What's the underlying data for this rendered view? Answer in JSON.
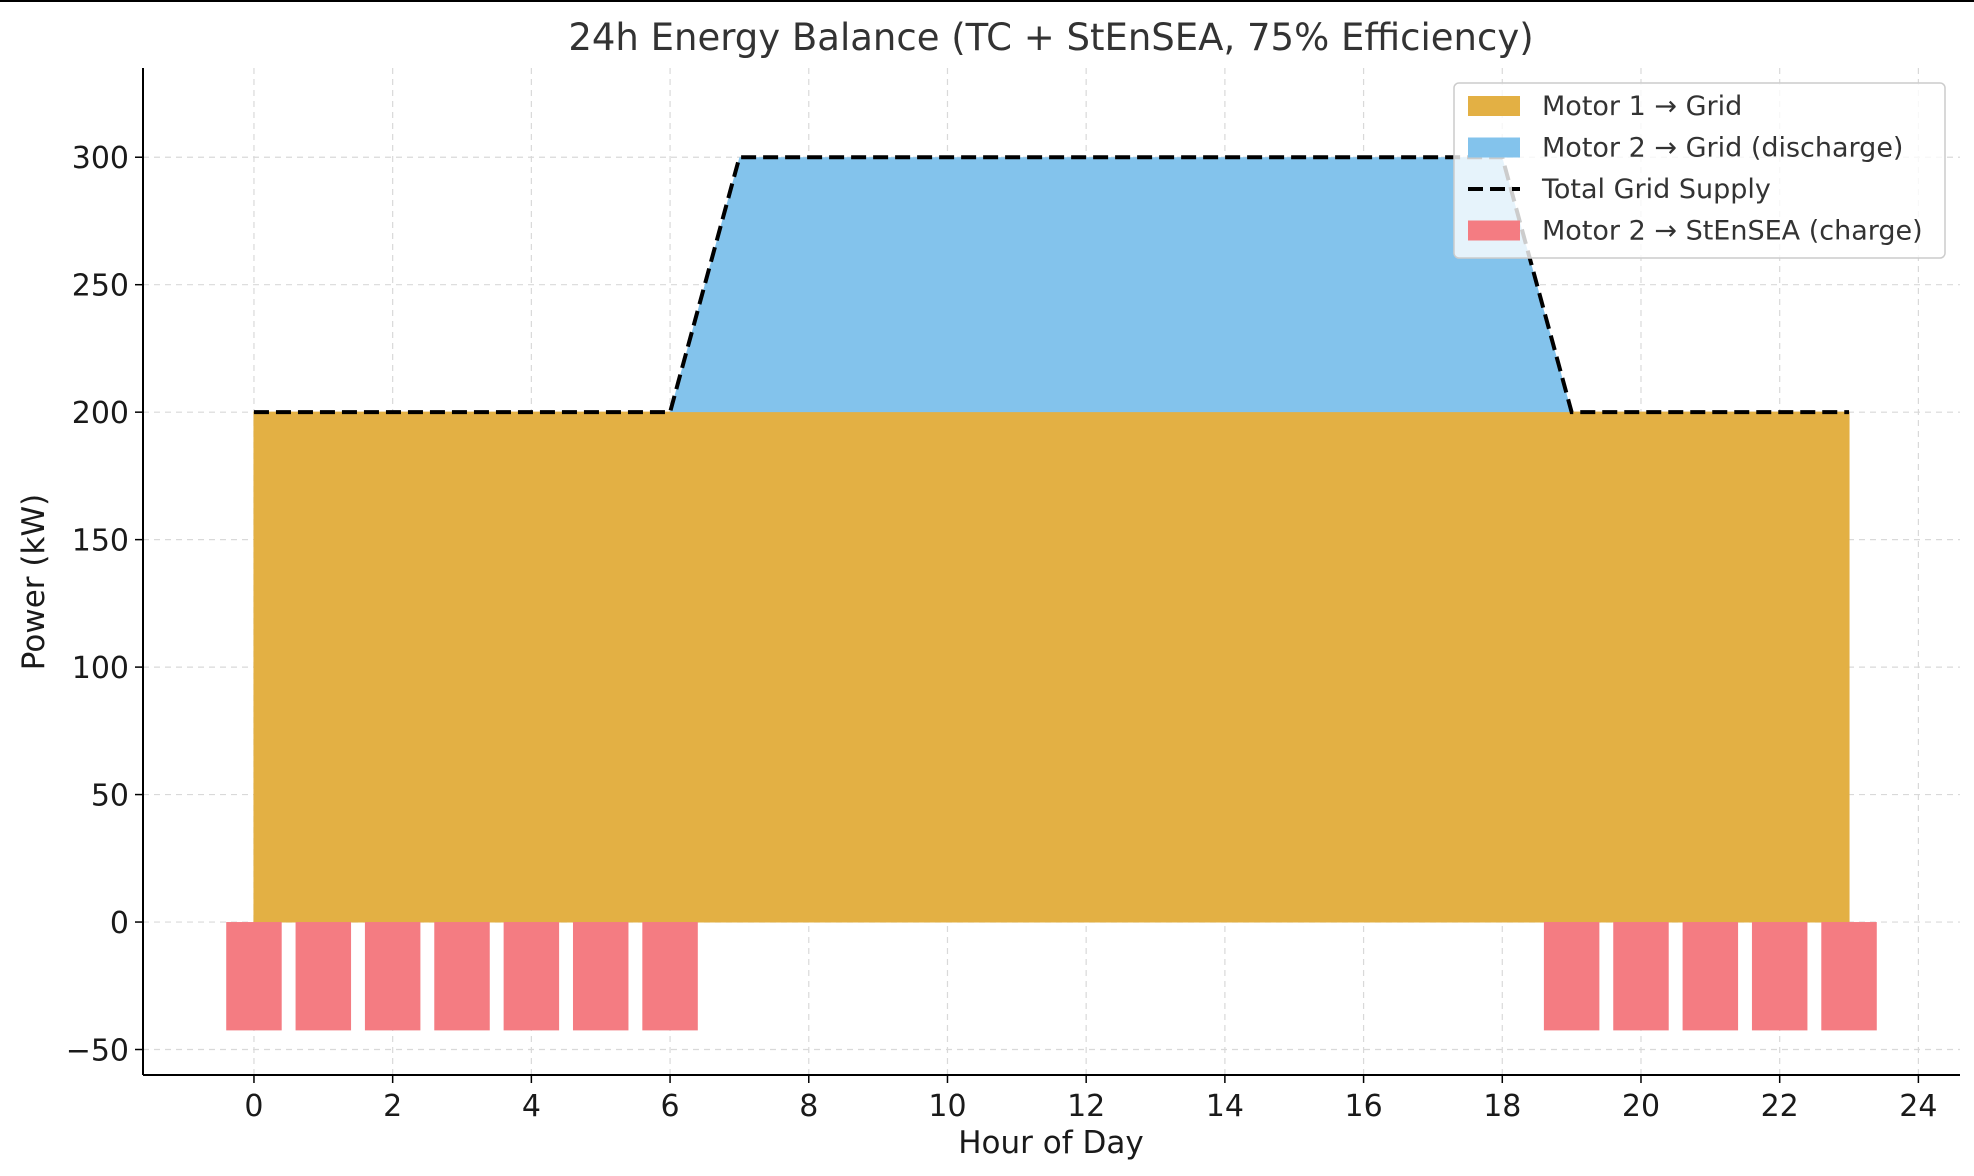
{
  "chart_data": {
    "type": "area",
    "title": "24h Energy Balance (TC + StEnSEA, 75% Efficiency)",
    "xlabel": "Hour of Day",
    "ylabel": "Power (kW)",
    "xlim": [
      -1.6,
      24.6
    ],
    "ylim": [
      -60,
      335
    ],
    "xticks": [
      0,
      2,
      4,
      6,
      8,
      10,
      12,
      14,
      16,
      18,
      20,
      22,
      24
    ],
    "yticks": [
      -50,
      0,
      50,
      100,
      150,
      200,
      250,
      300
    ],
    "tick_labels_x": [
      "0",
      "2",
      "4",
      "6",
      "8",
      "10",
      "12",
      "14",
      "16",
      "18",
      "20",
      "22",
      "24"
    ],
    "tick_labels_y": [
      "−50",
      "0",
      "50",
      "100",
      "150",
      "200",
      "250",
      "300"
    ],
    "grid": true,
    "legend_position": "top-right",
    "hours": [
      0,
      1,
      2,
      3,
      4,
      5,
      6,
      7,
      8,
      9,
      10,
      11,
      12,
      13,
      14,
      15,
      16,
      17,
      18,
      19,
      20,
      21,
      22,
      23
    ],
    "series": [
      {
        "name": "Motor 1 → Grid",
        "kind": "area",
        "color": "#e3b044",
        "values": [
          200,
          200,
          200,
          200,
          200,
          200,
          200,
          200,
          200,
          200,
          200,
          200,
          200,
          200,
          200,
          200,
          200,
          200,
          200,
          200,
          200,
          200,
          200,
          200
        ]
      },
      {
        "name": "Motor 2 → Grid (discharge)",
        "kind": "stacked-area",
        "color": "#83c3ec",
        "values": [
          0,
          0,
          0,
          0,
          0,
          0,
          0,
          100,
          100,
          100,
          100,
          100,
          100,
          100,
          100,
          100,
          100,
          100,
          100,
          0,
          0,
          0,
          0,
          0
        ]
      },
      {
        "name": "Total Grid Supply",
        "kind": "dashed-line",
        "color": "#000000",
        "values": [
          200,
          200,
          200,
          200,
          200,
          200,
          200,
          300,
          300,
          300,
          300,
          300,
          300,
          300,
          300,
          300,
          300,
          300,
          300,
          200,
          200,
          200,
          200,
          200
        ]
      },
      {
        "name": "Motor 2 → StEnSEA (charge)",
        "kind": "bar",
        "color": "#f47c82",
        "values": [
          -42.5,
          -42.5,
          -42.5,
          -42.5,
          -42.5,
          -42.5,
          -42.5,
          0,
          0,
          0,
          0,
          0,
          0,
          0,
          0,
          0,
          0,
          0,
          0,
          -42.5,
          -42.5,
          -42.5,
          -42.5,
          -42.5
        ]
      }
    ]
  }
}
